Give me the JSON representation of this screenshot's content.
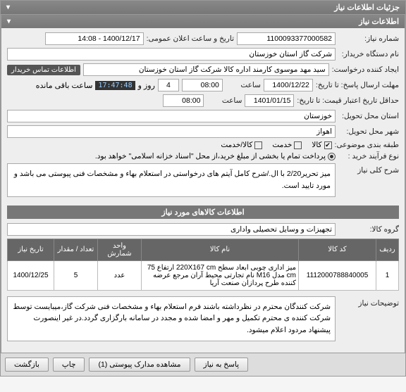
{
  "header": {
    "title": "جزئیات اطلاعات نیاز"
  },
  "section_info": {
    "title": "اطلاعات نیاز"
  },
  "fields": {
    "niaz_no_label": "شماره نیاز:",
    "niaz_no": "1100093377000582",
    "announce_label": "تاریخ و ساعت اعلان عمومی:",
    "announce": "1400/12/17 - 14:08",
    "buyer_label": "نام دستگاه خریدار:",
    "buyer": "شرکت گاز استان خوزستان",
    "requester_label": "ایجاد کننده درخواست:",
    "requester": "سید مهد موسوی کارمند اداره کالا شرکت گاز استان خوزستان",
    "contact_btn": "اطلاعات تماس خریدار",
    "deadline_label": "مهلت ارسال پاسخ: تا تاریخ:",
    "deadline_date": "1400/12/22",
    "time_label": "ساعت",
    "deadline_time": "08:00",
    "remaining_day": "4",
    "remaining_day_label": "روز و",
    "countdown": "17:47:48",
    "remaining_suffix": "ساعت باقی مانده",
    "validity_label": "حداقل تاریخ اعتبار قیمت: تا تاریخ:",
    "validity_date": "1401/01/15",
    "validity_time": "08:00",
    "province_label": "استان محل تحویل:",
    "province": "خوزستان",
    "city_label": "شهر محل تحویل:",
    "city": "اهواز",
    "category_label": "طبقه بندی موضوعی:",
    "cat_goods": "کالا",
    "cat_service": "خدمت",
    "cat_both": "کالا/خدمت",
    "process_label": "نوع فرآیند خرید :",
    "process_opt": "پرداخت تمام یا بخشی از مبلغ خرید،از محل \"اسناد خزانه اسلامی\" خواهد بود."
  },
  "desc": {
    "label": "شرح کلی نیاز",
    "text": "میز تحریر2/20 با ال./شرح کامل آیتم های درخواستی در استعلام بهاء و مشخصات فنی پیوستی می باشد و مورد تایید است."
  },
  "goods": {
    "title": "اطلاعات کالاهای مورد نیاز",
    "group_label": "گروه کالا:",
    "group_value": "تجهیزات و وسایل تحصیلی واداری",
    "cols": {
      "row": "ردیف",
      "code": "کد کالا",
      "name": "نام کالا",
      "unit": "واحد شمارش",
      "qty": "تعداد / مقدار",
      "date": "تاریخ نیاز"
    },
    "rows": [
      {
        "row": "1",
        "code": "1112000788840005",
        "name": "میز اداری چوبی ابعاد سطح 220X167 cm ارتفاع 75 cm مدل M16 نام تجارتی محیط آران مرجع عرضه کننده طرح پردازان صنعت آریا",
        "unit": "عدد",
        "qty": "5",
        "date": "1400/12/25"
      }
    ]
  },
  "notes": {
    "label": "توضیحات نیاز",
    "text": "شرکت کنندگان محترم در نظرداشته باشند فرم استعلام بهاء و مشخصات فنی شرکت گاز،میبایست توسط شرکت کننده ی محترم  تکمیل و مهر و امضا شده و مجدد در سامانه بارگزاری گردد.در غیر اینصورت پیشنهاد مردود اعلام میشود."
  },
  "footer": {
    "reply": "پاسخ به نیاز",
    "attachments": "مشاهده مدارک پیوستی (1)",
    "print": "چاپ",
    "back": "بازگشت"
  }
}
